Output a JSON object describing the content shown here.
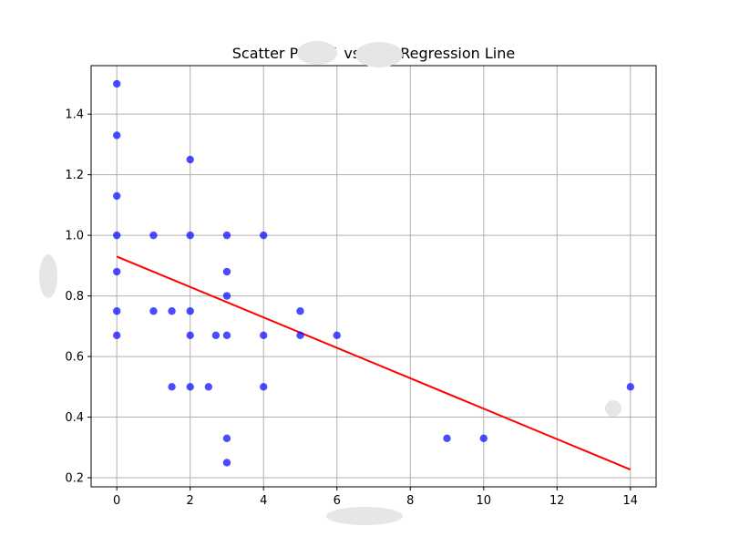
{
  "chart_data": {
    "type": "scatter",
    "title_parts": [
      "Scatter Plot of",
      "vs",
      "with Regression Line"
    ],
    "xlabel": "",
    "ylabel": "",
    "xlim": [
      -0.7,
      14.7
    ],
    "ylim": [
      0.17,
      1.56
    ],
    "x_ticks": [
      0,
      2,
      4,
      6,
      8,
      10,
      12,
      14
    ],
    "y_ticks": [
      0.2,
      0.4,
      0.6,
      0.8,
      1.0,
      1.2,
      1.4
    ],
    "x_tick_labels": [
      "0",
      "2",
      "4",
      "6",
      "8",
      "10",
      "12",
      "14"
    ],
    "y_tick_labels": [
      "0.2",
      "0.4",
      "0.6",
      "0.8",
      "1.0",
      "1.2",
      "1.4"
    ],
    "grid": true,
    "series": [
      {
        "points": [
          [
            0,
            1.5
          ],
          [
            0,
            1.33
          ],
          [
            0,
            1.13
          ],
          [
            0,
            1.0
          ],
          [
            0,
            0.88
          ],
          [
            0,
            0.75
          ],
          [
            0,
            0.67
          ],
          [
            1,
            1.0
          ],
          [
            1,
            0.75
          ],
          [
            1.5,
            0.75
          ],
          [
            1.5,
            0.5
          ],
          [
            2,
            1.25
          ],
          [
            2,
            1.0
          ],
          [
            2,
            0.75
          ],
          [
            2,
            0.67
          ],
          [
            2,
            0.5
          ],
          [
            2.5,
            0.5
          ],
          [
            2.7,
            0.67
          ],
          [
            3,
            1.0
          ],
          [
            3,
            0.88
          ],
          [
            3,
            0.8
          ],
          [
            3,
            0.67
          ],
          [
            3,
            0.33
          ],
          [
            3,
            0.25
          ],
          [
            4,
            1.0
          ],
          [
            4,
            0.67
          ],
          [
            4,
            0.5
          ],
          [
            5,
            0.75
          ],
          [
            5,
            0.67
          ],
          [
            6,
            0.67
          ],
          [
            9,
            0.33
          ],
          [
            10,
            0.33
          ],
          [
            14,
            0.5
          ]
        ],
        "color": "#0000ff",
        "opacity": 0.7
      }
    ],
    "regression_line": {
      "x": [
        0,
        14
      ],
      "y": [
        0.93,
        0.227
      ],
      "color": "#ff0000"
    },
    "grid_color": "#b0b0b0",
    "redaction_color": "#e6e6e6"
  }
}
